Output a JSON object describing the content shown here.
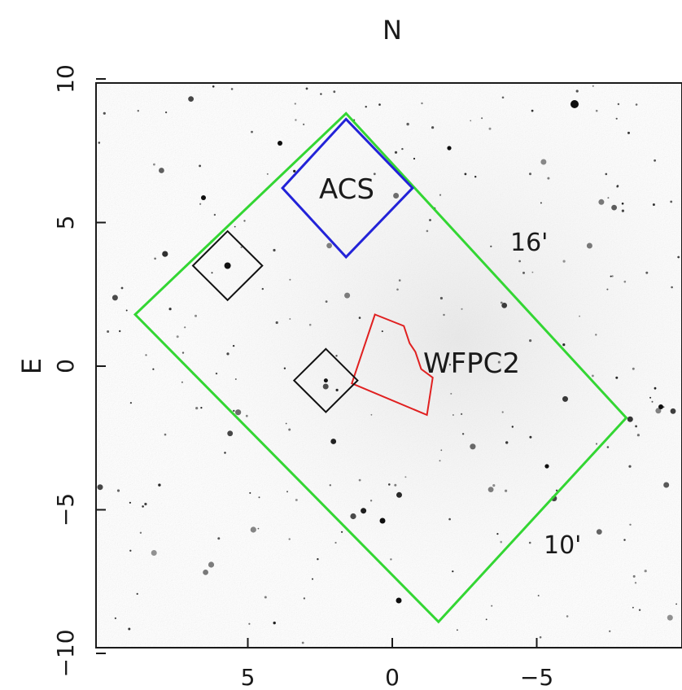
{
  "figure": {
    "directions": {
      "north": "N",
      "east": "E"
    },
    "instruments": {
      "acs": {
        "label": "ACS",
        "color": "#2323d8"
      },
      "wfpc2": {
        "label": "WFPC2",
        "color": "#e02020"
      }
    },
    "field_outline": {
      "color": "#33d633"
    },
    "dimensions": {
      "long_side": "16'",
      "short_side": "10'"
    },
    "markers_color": "#111111"
  },
  "chart_data": {
    "type": "diagram",
    "x_ticks": [
      5,
      0,
      -5
    ],
    "y_ticks": [
      10,
      5,
      0,
      -5,
      -10
    ],
    "x_tick_labels": [
      "5",
      "0",
      "−5"
    ],
    "y_tick_labels": [
      "10",
      "5",
      "0",
      "−5",
      "−10"
    ],
    "xlim": [
      9.5,
      -9.8
    ],
    "ylim": [
      -10.3,
      10
    ],
    "grid": false,
    "field_corners": [
      [
        8.9,
        1.8
      ],
      [
        1.6,
        8.8
      ],
      [
        -8.1,
        -1.8
      ],
      [
        -1.6,
        -8.9
      ]
    ],
    "acs_corners": [
      [
        1.6,
        8.6
      ],
      [
        -0.7,
        6.2
      ],
      [
        1.6,
        3.8
      ],
      [
        3.8,
        6.2
      ]
    ],
    "wfpc2_outline": [
      [
        0.6,
        1.8
      ],
      [
        -0.4,
        1.4
      ],
      [
        -0.6,
        0.8
      ],
      [
        -0.8,
        0.5
      ],
      [
        -1.0,
        -0.1
      ],
      [
        -1.4,
        -0.4
      ],
      [
        -1.2,
        -1.7
      ],
      [
        1.4,
        -0.6
      ]
    ],
    "markers": [
      {
        "center": [
          5.7,
          3.5
        ],
        "half_size": 1.2
      },
      {
        "center": [
          2.3,
          -0.5
        ],
        "half_size": 1.1
      }
    ]
  }
}
